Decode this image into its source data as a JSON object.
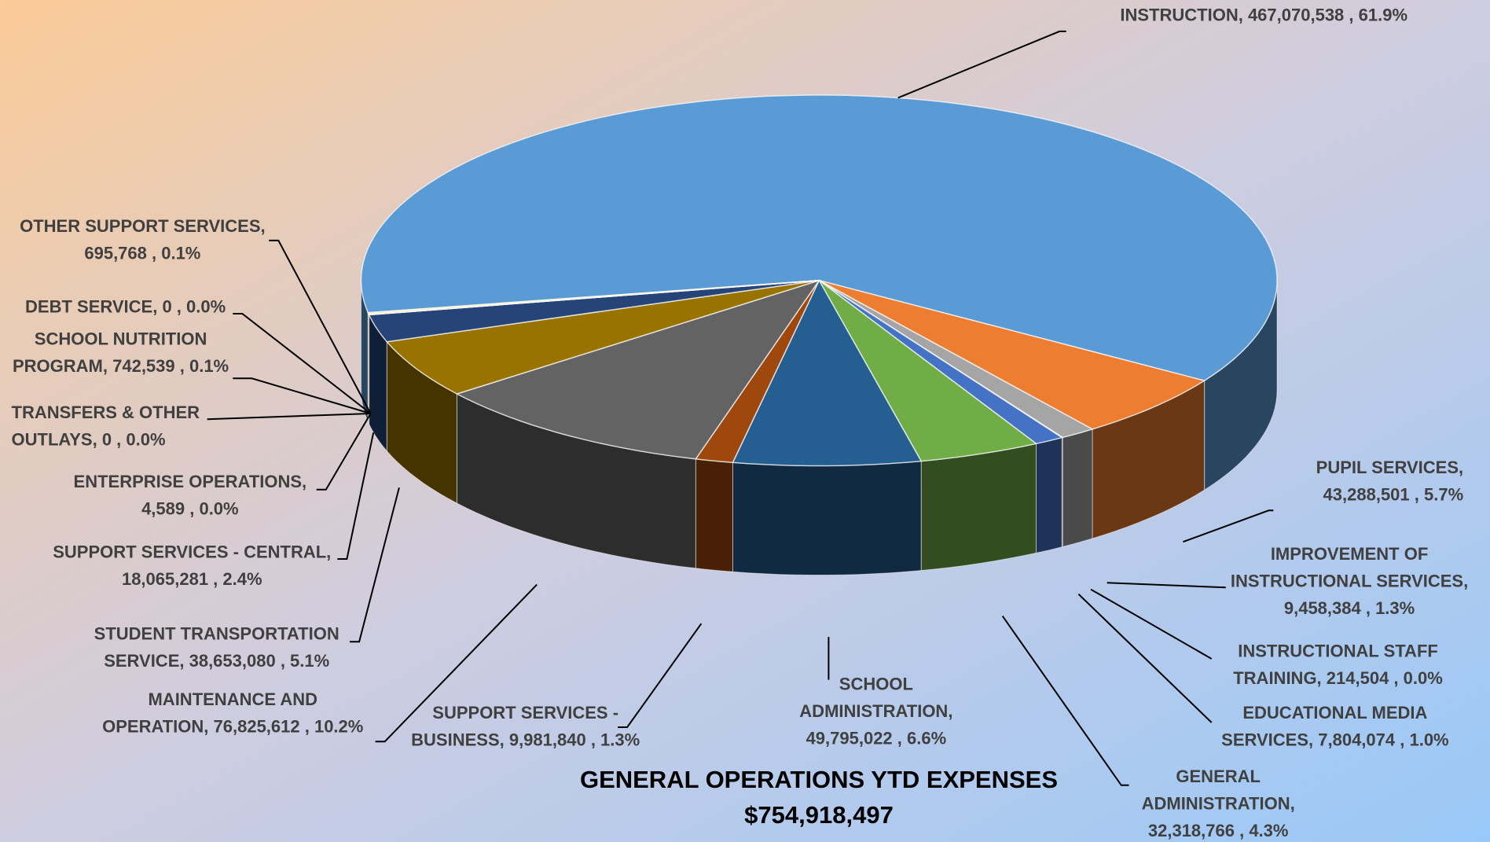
{
  "chart_data": {
    "type": "pie3d",
    "title": "GENERAL OPERATIONS YTD EXPENSES",
    "subtitle": "$754,918,497",
    "values": [
      467070538,
      43288501,
      9458384,
      214504,
      7804074,
      32318766,
      49795022,
      9981840,
      76825612,
      38653080,
      18065281,
      4589,
      0,
      742539,
      0,
      695768
    ],
    "value_labels": [
      [
        "INSTRUCTION, 467,070,538 , 61.9%"
      ],
      [
        "PUPIL SERVICES,",
        "43,288,501 , 5.7%"
      ],
      [
        "IMPROVEMENT OF",
        "INSTRUCTIONAL SERVICES,",
        "9,458,384 , 1.3%"
      ],
      [
        "INSTRUCTIONAL STAFF",
        "TRAINING, 214,504 , 0.0%"
      ],
      [
        "EDUCATIONAL MEDIA",
        "SERVICES, 7,804,074 , 1.0%"
      ],
      [
        "GENERAL",
        "ADMINISTRATION,",
        "32,318,766 , 4.3%"
      ],
      [
        "SCHOOL",
        "ADMINISTRATION,",
        "49,795,022 , 6.6%"
      ],
      [
        "SUPPORT SERVICES -",
        "BUSINESS, 9,981,840 , 1.3%"
      ],
      [
        "MAINTENANCE AND",
        "OPERATION, 76,825,612 , 10.2%"
      ],
      [
        "STUDENT TRANSPORTATION",
        "SERVICE, 38,653,080 , 5.1%"
      ],
      [
        "SUPPORT SERVICES - CENTRAL,",
        "18,065,281 , 2.4%"
      ],
      [
        "ENTERPRISE OPERATIONS,",
        "4,589 , 0.0%"
      ],
      [
        "TRANSFERS & OTHER",
        "OUTLAYS, 0 , 0.0%"
      ],
      [
        "SCHOOL NUTRITION",
        "PROGRAM, 742,539 , 0.1%"
      ],
      [
        "DEBT SERVICE, 0 , 0.0%"
      ],
      [
        "OTHER SUPPORT SERVICES,",
        "695,768 , 0.1%"
      ]
    ],
    "colors": [
      "#5b9bd5",
      "#ed7d31",
      "#a5a5a5",
      "#ffc000",
      "#4472c4",
      "#70ad47",
      "#255e91",
      "#9e480e",
      "#636363",
      "#997300",
      "#264478",
      "#43682b",
      "#698ed0",
      "#f1975a",
      "#b7b7b7",
      "#ffcd33"
    ]
  }
}
